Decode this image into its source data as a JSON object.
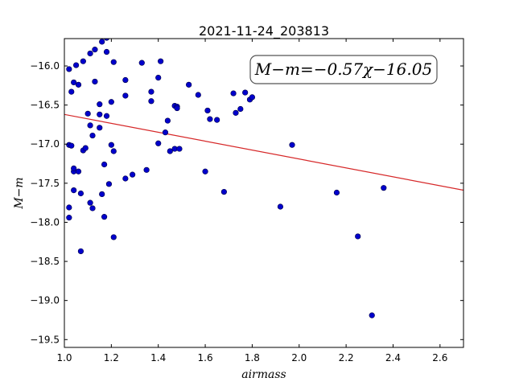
{
  "chart_data": {
    "type": "scatter",
    "title": "2021-11-24_203813",
    "xlabel": "airmass",
    "ylabel": "M−m",
    "xlim": [
      1.0,
      2.7
    ],
    "ylim": [
      -19.6,
      -15.65
    ],
    "y_inverted": true,
    "xticks": [
      1.0,
      1.2,
      1.4,
      1.6,
      1.8,
      2.0,
      2.2,
      2.4,
      2.6
    ],
    "xtick_labels": [
      "1.0",
      "1.2",
      "1.4",
      "1.6",
      "1.8",
      "2.0",
      "2.2",
      "2.4",
      "2.6"
    ],
    "yticks": [
      -16.0,
      -16.5,
      -17.0,
      -17.5,
      -18.0,
      -18.5,
      -19.0,
      -19.5
    ],
    "ytick_labels": [
      "−16.0",
      "−16.5",
      "−17.0",
      "−17.5",
      "−18.0",
      "−18.5",
      "−19.0",
      "−19.5"
    ],
    "grid": false,
    "annotation": "M−m=−0.57χ−16.05",
    "fit_line": {
      "slope": -0.57,
      "intercept": -16.05,
      "color": "#d62728"
    },
    "marker_color": "#0000cc",
    "points": [
      [
        1.02,
        -16.04
      ],
      [
        1.02,
        -17.01
      ],
      [
        1.02,
        -17.81
      ],
      [
        1.02,
        -17.94
      ],
      [
        1.03,
        -16.33
      ],
      [
        1.03,
        -17.02
      ],
      [
        1.04,
        -16.21
      ],
      [
        1.04,
        -17.35
      ],
      [
        1.04,
        -17.31
      ],
      [
        1.04,
        -17.59
      ],
      [
        1.05,
        -15.99
      ],
      [
        1.06,
        -16.24
      ],
      [
        1.06,
        -17.35
      ],
      [
        1.07,
        -18.37
      ],
      [
        1.07,
        -17.63
      ],
      [
        1.08,
        -15.94
      ],
      [
        1.08,
        -17.08
      ],
      [
        1.09,
        -17.05
      ],
      [
        1.1,
        -16.61
      ],
      [
        1.11,
        -15.84
      ],
      [
        1.11,
        -16.76
      ],
      [
        1.11,
        -17.75
      ],
      [
        1.12,
        -16.89
      ],
      [
        1.12,
        -17.82
      ],
      [
        1.13,
        -15.79
      ],
      [
        1.13,
        -16.2
      ],
      [
        1.15,
        -16.49
      ],
      [
        1.15,
        -16.62
      ],
      [
        1.15,
        -16.79
      ],
      [
        1.16,
        -15.69
      ],
      [
        1.16,
        -17.64
      ],
      [
        1.17,
        -17.26
      ],
      [
        1.17,
        -17.93
      ],
      [
        1.18,
        -15.64
      ],
      [
        1.18,
        -15.82
      ],
      [
        1.18,
        -16.64
      ],
      [
        1.19,
        -17.51
      ],
      [
        1.2,
        -16.46
      ],
      [
        1.2,
        -17.01
      ],
      [
        1.21,
        -15.95
      ],
      [
        1.21,
        -17.09
      ],
      [
        1.21,
        -18.19
      ],
      [
        1.26,
        -16.18
      ],
      [
        1.26,
        -16.38
      ],
      [
        1.26,
        -17.44
      ],
      [
        1.29,
        -17.39
      ],
      [
        1.33,
        -15.96
      ],
      [
        1.35,
        -17.33
      ],
      [
        1.37,
        -16.33
      ],
      [
        1.37,
        -16.45
      ],
      [
        1.4,
        -16.15
      ],
      [
        1.4,
        -16.99
      ],
      [
        1.41,
        -15.94
      ],
      [
        1.43,
        -16.85
      ],
      [
        1.44,
        -16.7
      ],
      [
        1.45,
        -17.09
      ],
      [
        1.47,
        -16.51
      ],
      [
        1.47,
        -17.06
      ],
      [
        1.48,
        -16.52
      ],
      [
        1.48,
        -16.54
      ],
      [
        1.49,
        -17.06
      ],
      [
        1.53,
        -16.24
      ],
      [
        1.57,
        -16.37
      ],
      [
        1.6,
        -17.35
      ],
      [
        1.61,
        -16.57
      ],
      [
        1.62,
        -16.68
      ],
      [
        1.65,
        -16.69
      ],
      [
        1.68,
        -17.61
      ],
      [
        1.72,
        -16.35
      ],
      [
        1.73,
        -16.6
      ],
      [
        1.75,
        -16.55
      ],
      [
        1.77,
        -16.34
      ],
      [
        1.79,
        -16.43
      ],
      [
        1.8,
        -16.4
      ],
      [
        1.92,
        -17.8
      ],
      [
        1.97,
        -17.01
      ],
      [
        2.16,
        -17.62
      ],
      [
        2.25,
        -18.18
      ],
      [
        2.31,
        -19.19
      ],
      [
        2.36,
        -17.56
      ]
    ]
  }
}
